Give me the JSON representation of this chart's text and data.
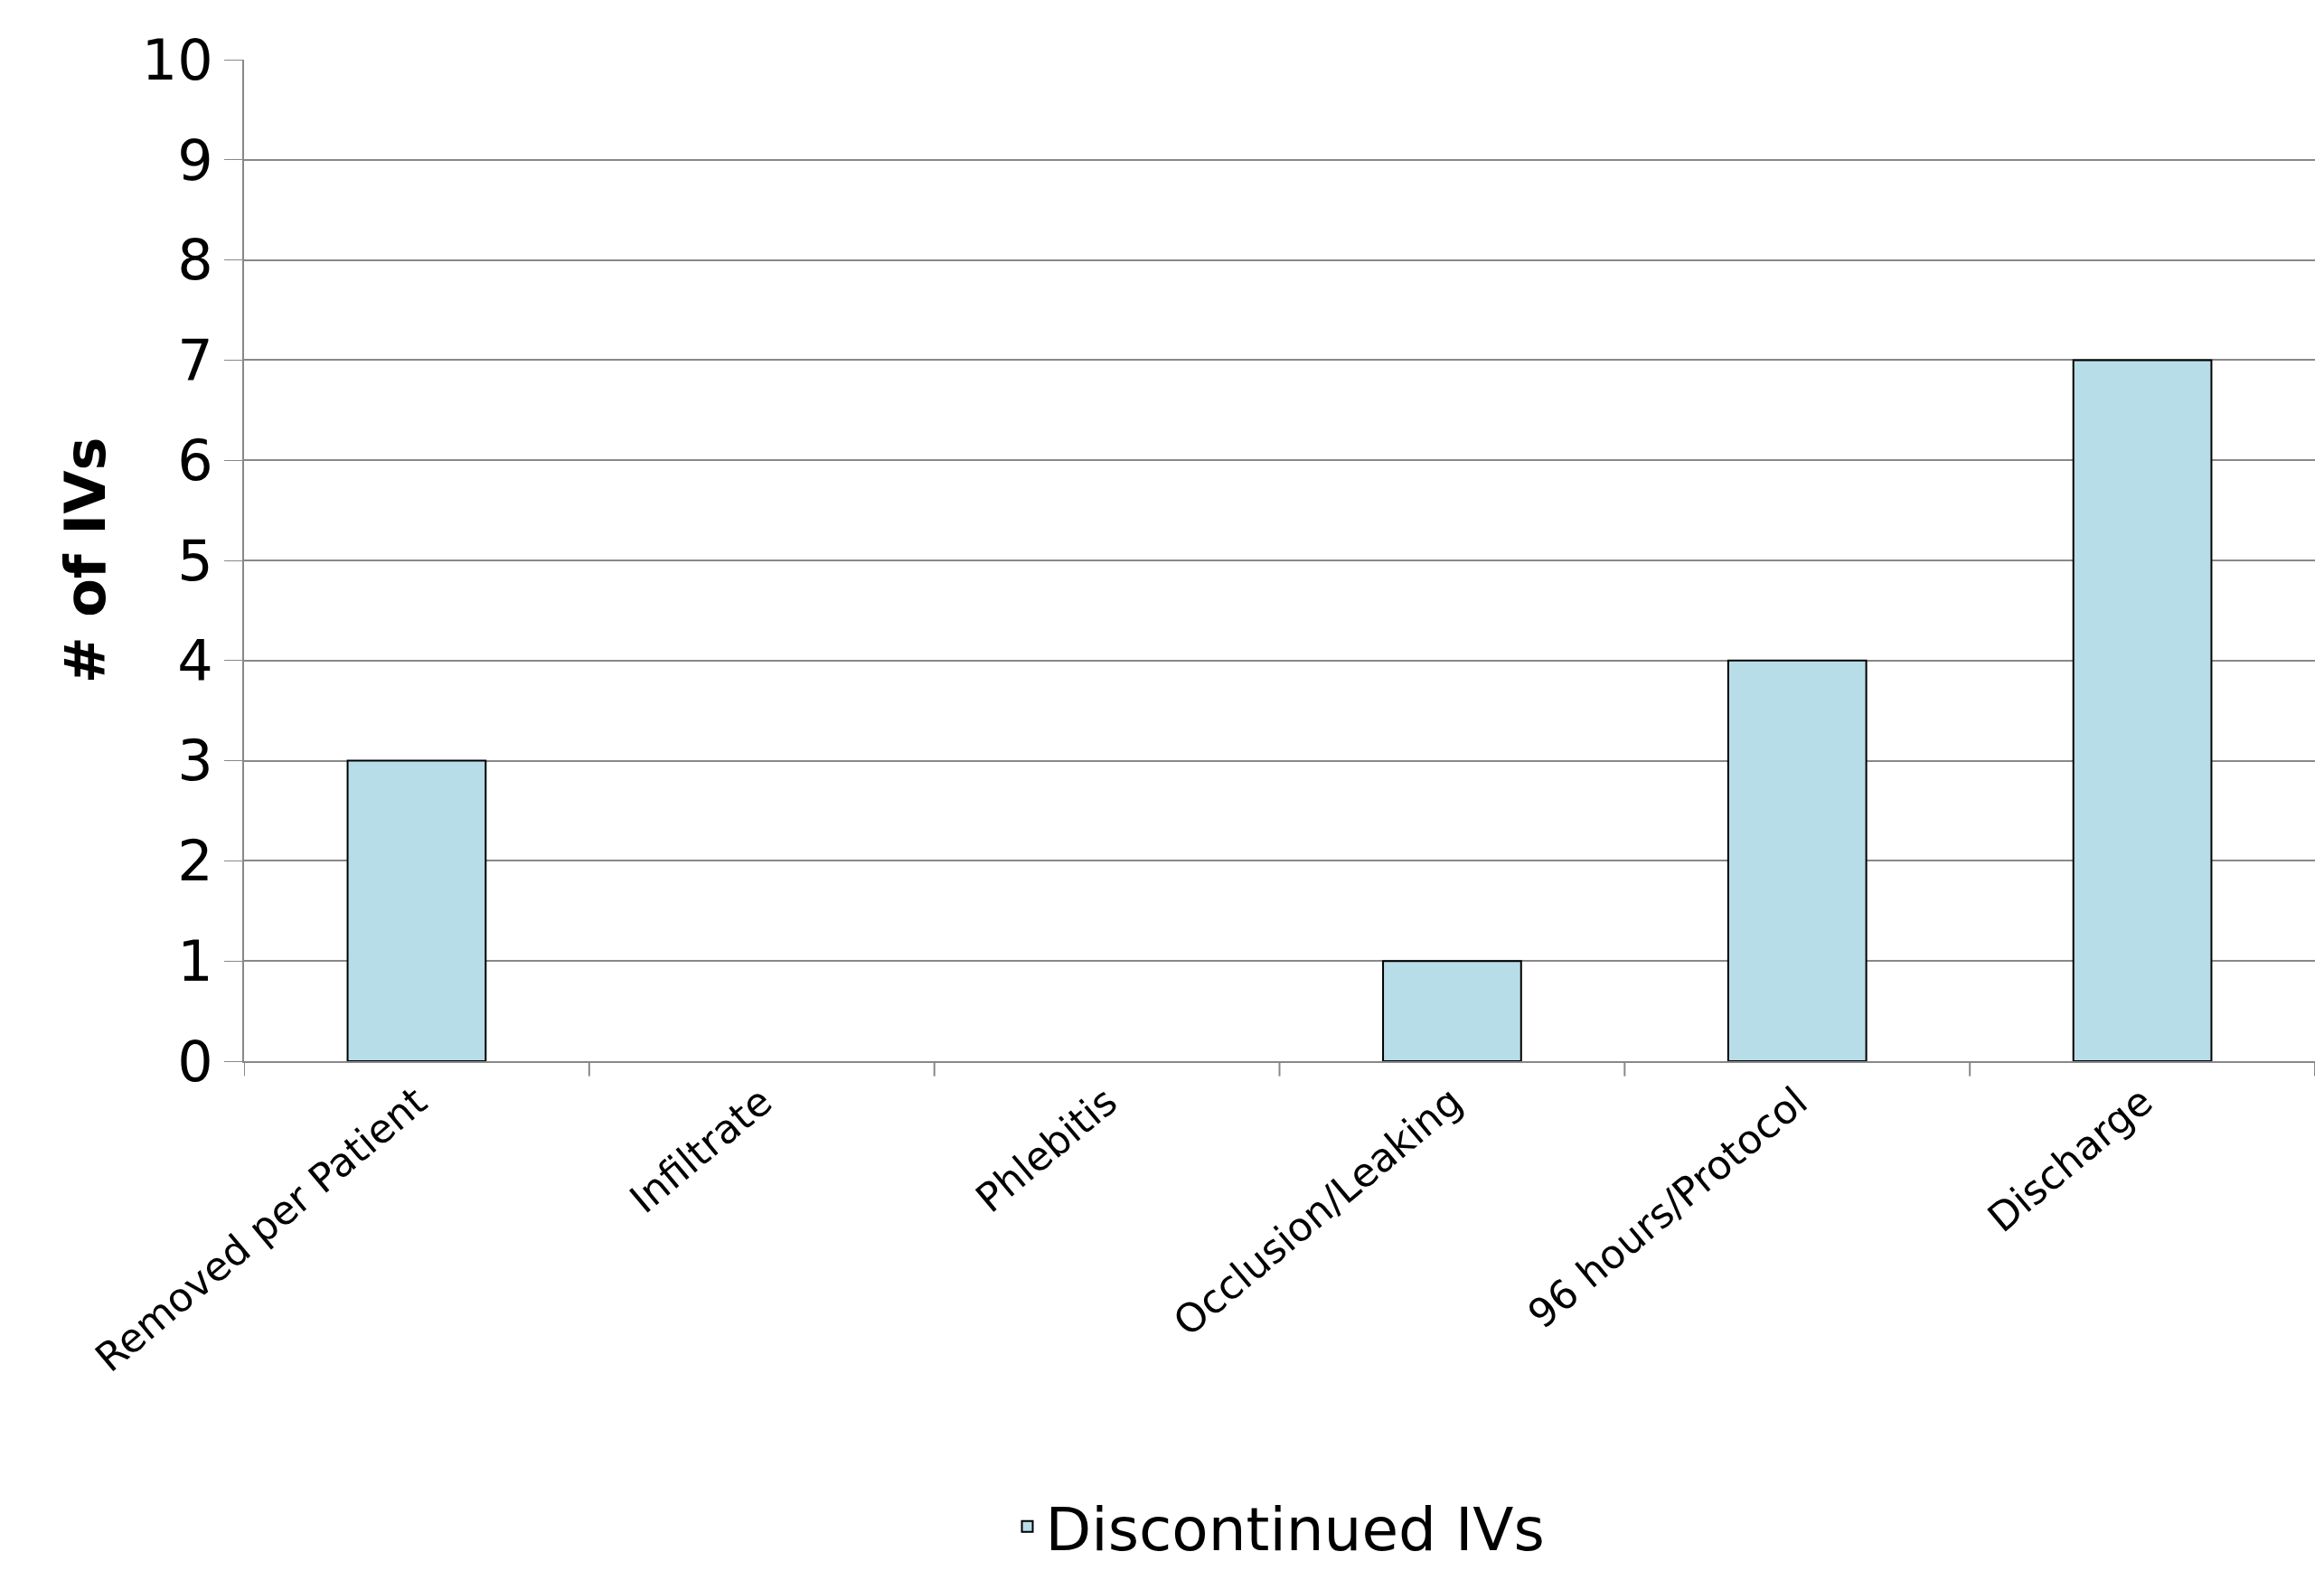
{
  "chart_data": {
    "type": "bar",
    "ylabel": "# of IVs",
    "categories": [
      "Removed per Patient",
      "Infiltrate",
      "Phlebitis",
      "Occlusion/Leaking",
      "96 hours/Protocol",
      "Discharge"
    ],
    "series": [
      {
        "name": "Discontinued IVs",
        "color": "#b7dde8",
        "values": [
          3,
          0,
          0,
          1,
          4,
          7
        ]
      }
    ],
    "ylim": [
      0,
      10
    ],
    "yticks": [
      0,
      1,
      2,
      3,
      4,
      5,
      6,
      7,
      8,
      9,
      10
    ],
    "grid": "y",
    "legend": "bottom"
  }
}
